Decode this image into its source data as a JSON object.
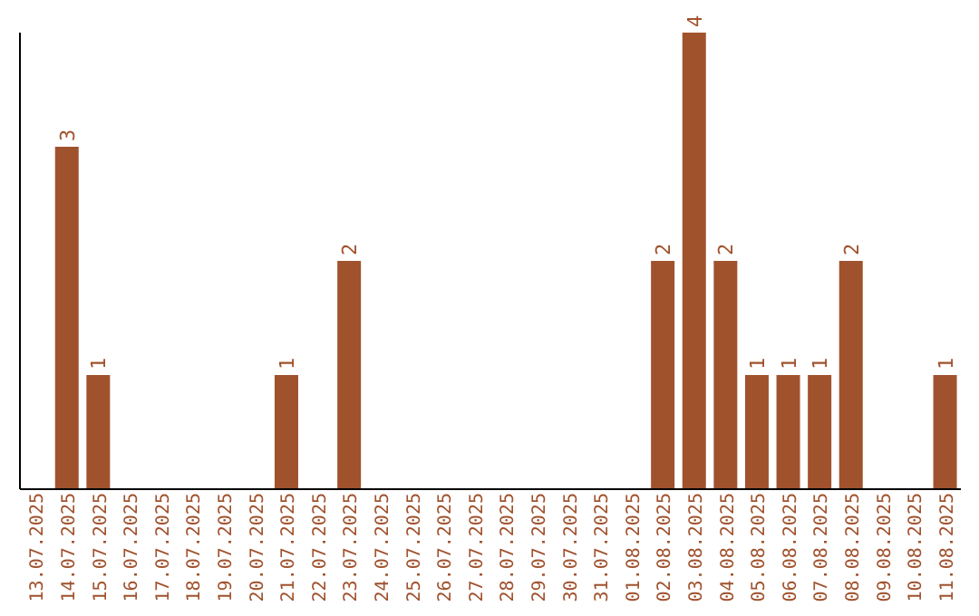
{
  "chart_data": {
    "type": "bar",
    "categories": [
      "13.07.2025",
      "14.07.2025",
      "15.07.2025",
      "16.07.2025",
      "17.07.2025",
      "18.07.2025",
      "19.07.2025",
      "20.07.2025",
      "21.07.2025",
      "22.07.2025",
      "23.07.2025",
      "24.07.2025",
      "25.07.2025",
      "26.07.2025",
      "27.07.2025",
      "28.07.2025",
      "29.07.2025",
      "30.07.2025",
      "31.07.2025",
      "01.08.2025",
      "02.08.2025",
      "03.08.2025",
      "04.08.2025",
      "05.08.2025",
      "06.08.2025",
      "07.08.2025",
      "08.08.2025",
      "09.08.2025",
      "10.08.2025",
      "11.08.2025"
    ],
    "values": [
      0,
      3,
      1,
      0,
      0,
      0,
      0,
      0,
      1,
      0,
      2,
      0,
      0,
      0,
      0,
      0,
      0,
      0,
      0,
      0,
      2,
      4,
      2,
      1,
      1,
      1,
      2,
      0,
      0,
      1
    ],
    "value_labels": [
      null,
      "3",
      "1",
      null,
      null,
      null,
      null,
      null,
      "1",
      null,
      "2",
      null,
      null,
      null,
      null,
      null,
      null,
      null,
      null,
      null,
      "2",
      "4",
      "2",
      "1",
      "1",
      "1",
      "2",
      null,
      null,
      "1"
    ],
    "color": "#a0522d",
    "tick_labels": "x"
  }
}
